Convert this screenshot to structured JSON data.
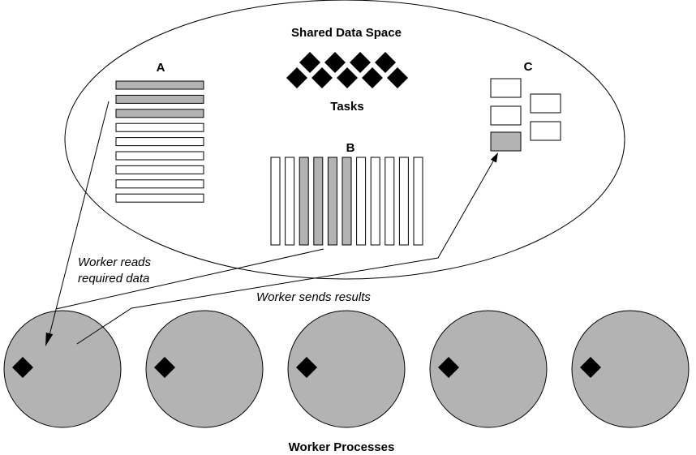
{
  "labels": {
    "shared_space": "Shared Data Space",
    "tasks": "Tasks",
    "region_a": "A",
    "region_b": "B",
    "region_c": "C",
    "reads_line1": "Worker reads",
    "reads_line2": "required data",
    "sends": "Worker sends results",
    "workers": "Worker Processes"
  },
  "colors": {
    "filled": "#b3b3b3",
    "worker": "#b3b3b3",
    "outline": "#000000",
    "empty": "#ffffff"
  },
  "region_a": {
    "rows": [
      true,
      true,
      true,
      false,
      false,
      false,
      false,
      false,
      false
    ]
  },
  "region_b": {
    "columns": [
      false,
      false,
      true,
      true,
      true,
      true,
      false,
      false,
      false,
      false,
      false
    ]
  },
  "region_c": {
    "boxes": [
      false,
      false,
      true,
      false,
      false
    ]
  },
  "tasks": {
    "count": 9
  },
  "workers": {
    "count": 5
  }
}
